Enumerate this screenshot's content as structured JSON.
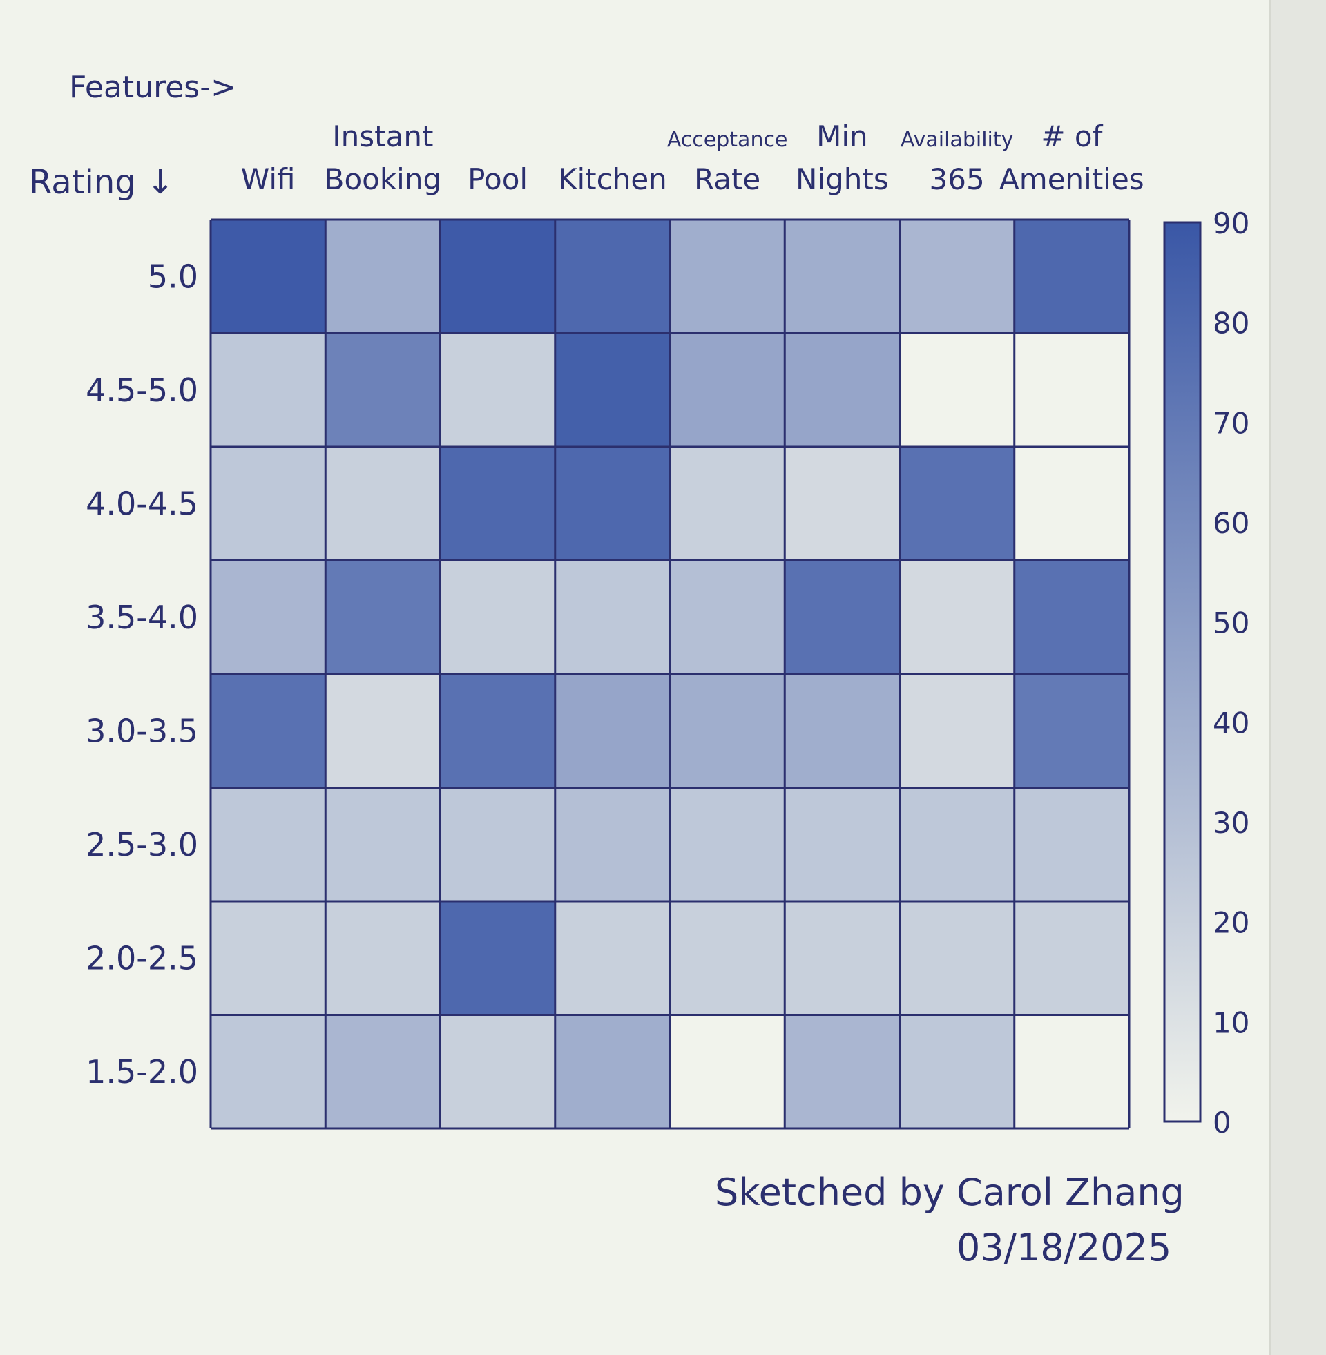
{
  "chart_data": {
    "type": "heatmap",
    "title": "",
    "column_axis_label": "Features->",
    "row_axis_label": "Rating ↓",
    "columns": [
      {
        "lines": [
          "",
          "Wifi"
        ]
      },
      {
        "lines": [
          "Instant",
          "Booking"
        ]
      },
      {
        "lines": [
          "",
          "Pool"
        ]
      },
      {
        "lines": [
          "",
          "Kitchen"
        ]
      },
      {
        "lines": [
          "Acceptance",
          "Rate"
        ]
      },
      {
        "lines": [
          "Min",
          "Nights"
        ]
      },
      {
        "lines": [
          "Availability",
          "365"
        ]
      },
      {
        "lines": [
          "# of",
          "Amenities"
        ]
      }
    ],
    "rows": [
      "5.0",
      "4.5-5.0",
      "4.0-4.5",
      "3.5-4.0",
      "3.0-3.5",
      "2.5-3.0",
      "2.0-2.5",
      "1.5-2.0"
    ],
    "values": [
      [
        88,
        40,
        88,
        80,
        40,
        40,
        35,
        80
      ],
      [
        25,
        65,
        20,
        85,
        45,
        45,
        0,
        0
      ],
      [
        25,
        20,
        80,
        80,
        20,
        15,
        75,
        0
      ],
      [
        35,
        70,
        20,
        25,
        30,
        75,
        15,
        75
      ],
      [
        75,
        15,
        75,
        45,
        40,
        40,
        15,
        70
      ],
      [
        25,
        25,
        25,
        30,
        25,
        25,
        25,
        25
      ],
      [
        20,
        20,
        80,
        20,
        20,
        20,
        20,
        20
      ],
      [
        25,
        35,
        20,
        40,
        0,
        35,
        25,
        0
      ]
    ],
    "colorbar": {
      "min": 0,
      "max": 90,
      "ticks": [
        "90",
        "80",
        "70",
        "60",
        "50",
        "40",
        "30",
        "20",
        "10",
        "0"
      ]
    },
    "color_scale": {
      "low": "#f1f3ec",
      "high": "#3a57a6"
    }
  },
  "signature": {
    "line1": "Sketched by Carol Zhang",
    "line2": "03/18/2025"
  }
}
